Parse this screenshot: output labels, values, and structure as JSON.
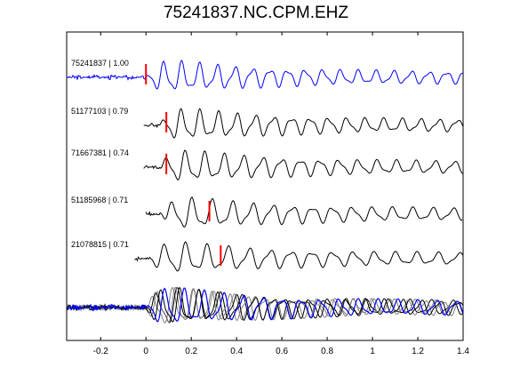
{
  "title": "75241837.NC.CPM.EHZ",
  "colors": {
    "reference_trace": "#0000ff",
    "trace": "#000000",
    "pick_marker": "#ff0000",
    "stack_other": "#7f7f7f"
  },
  "chart_data": {
    "type": "line",
    "title": "75241837.NC.CPM.EHZ",
    "xlabel": "",
    "ylabel": "",
    "xlim": [
      -0.35,
      1.4
    ],
    "xticks": [
      -0.2,
      0,
      0.2,
      0.4,
      0.6,
      0.8,
      1,
      1.2,
      1.4
    ],
    "xtick_labels": [
      "-0.2",
      "0",
      "0.2",
      "0.4",
      "0.6",
      "0.8",
      "1",
      "1.2",
      "1.4"
    ],
    "grid": false,
    "series": [
      {
        "label": "75241837 | 1.00",
        "pick_time": 0.0,
        "onset": 0.0
      },
      {
        "label": "51177103 | 0.79",
        "pick_time": 0.09,
        "onset": 0.06
      },
      {
        "label": "71667381 | 0.74",
        "pick_time": 0.09,
        "onset": 0.06
      },
      {
        "label": "51185968 | 0.71",
        "pick_time": 0.28,
        "onset": 0.07
      },
      {
        "label": "21078815 | 0.71",
        "pick_time": 0.33,
        "onset": 0.02
      }
    ],
    "stack": {
      "count": 5
    }
  }
}
